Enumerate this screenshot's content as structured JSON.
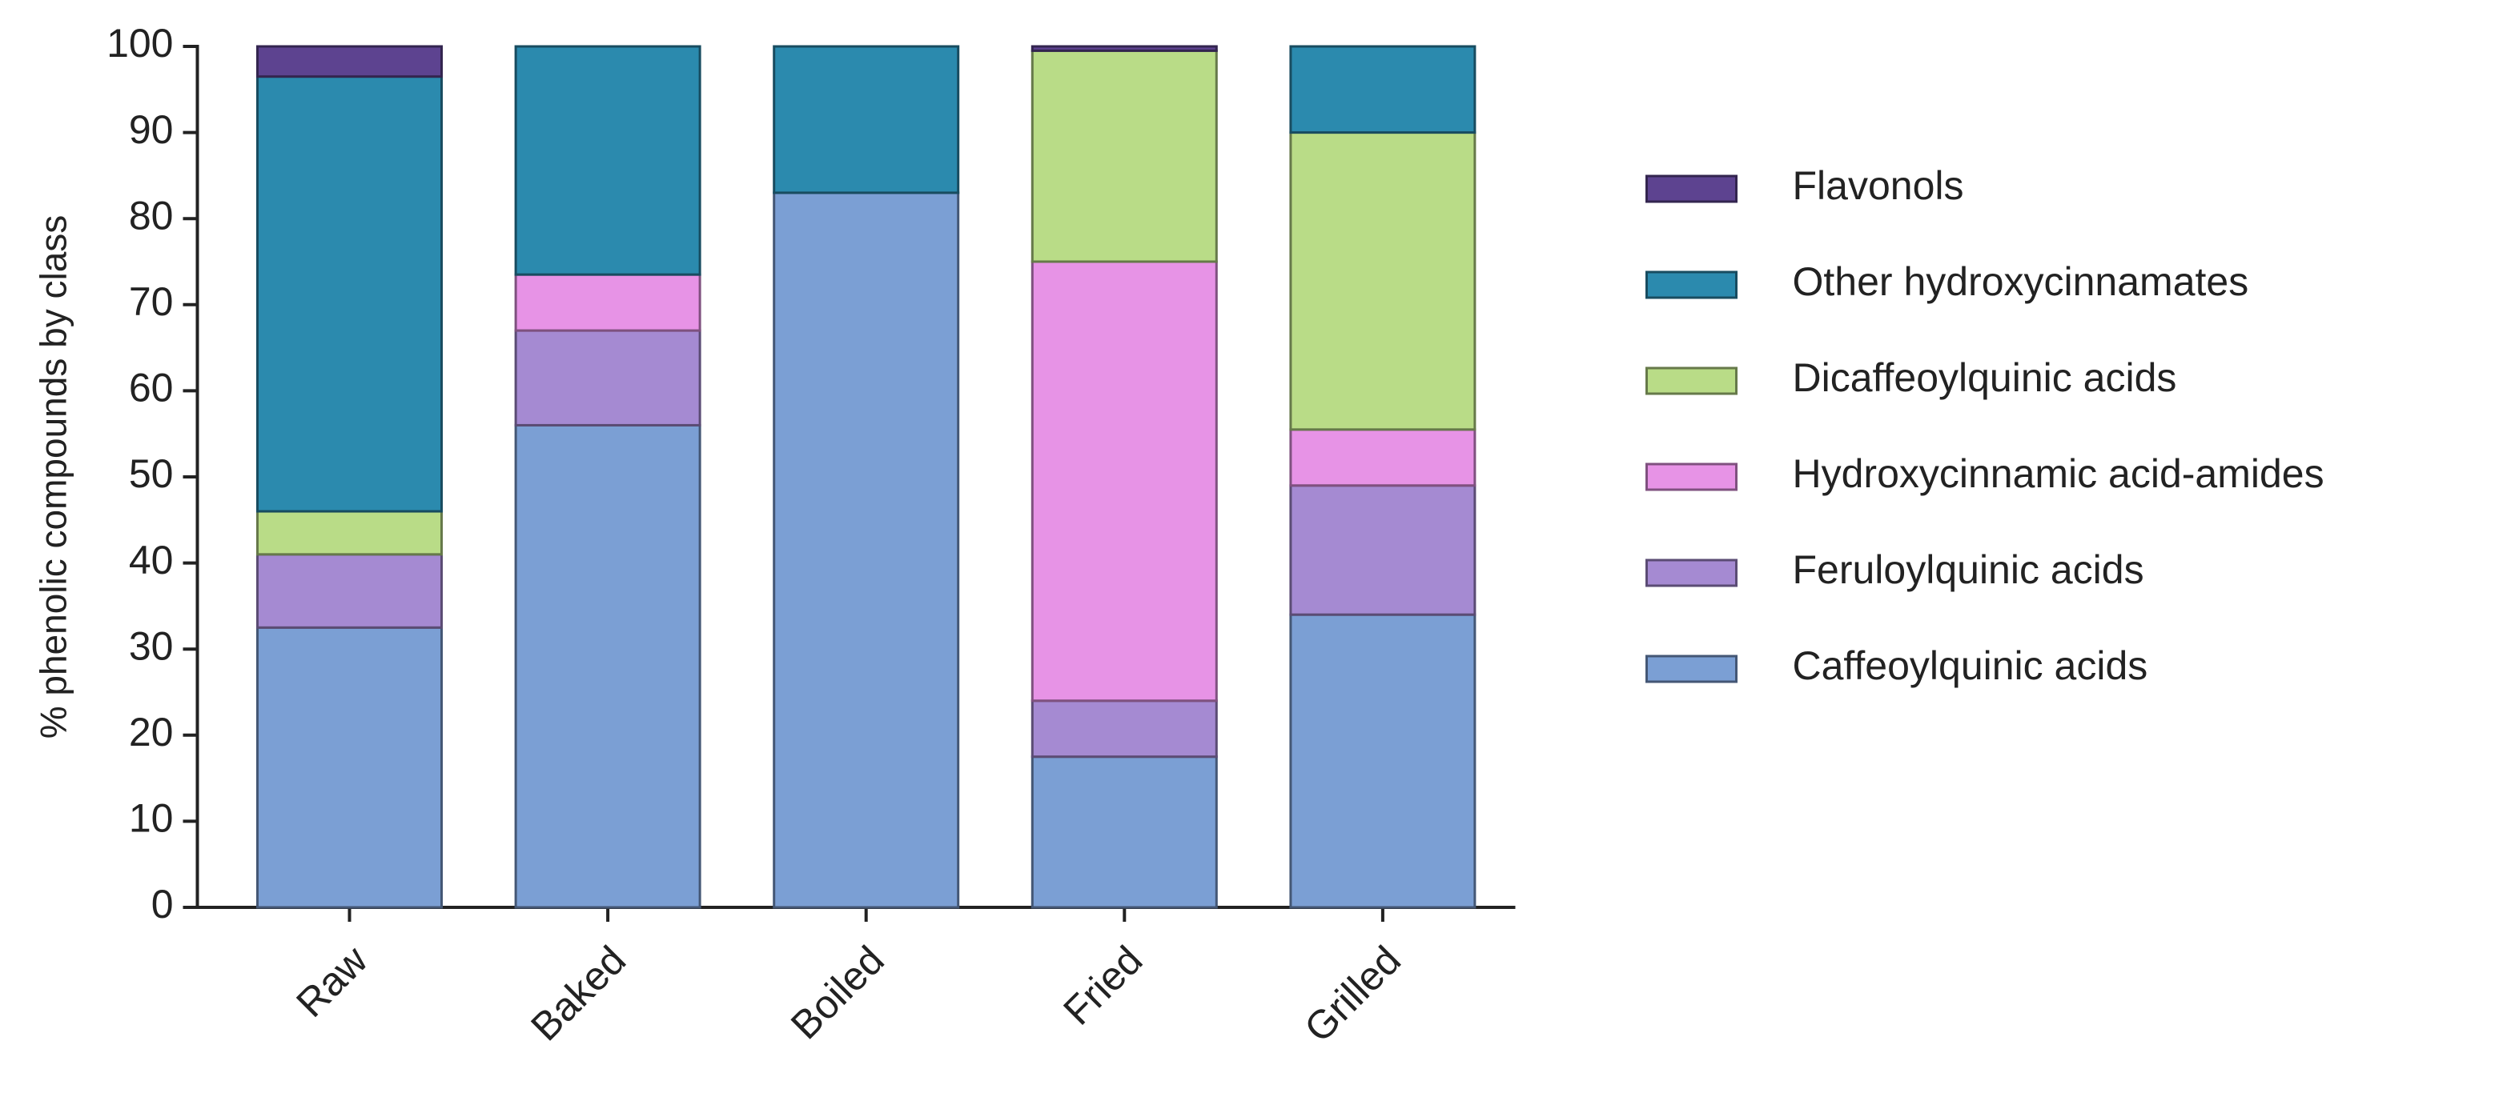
{
  "chart_data": {
    "type": "stacked-bar",
    "y_label": "% phenolic compounds by class",
    "categories": [
      "Raw",
      "Baked",
      "Boiled",
      "Fried",
      "Grilled"
    ],
    "ylim": [
      0,
      100
    ],
    "yticks": [
      0,
      10,
      20,
      30,
      40,
      50,
      60,
      70,
      80,
      90,
      100
    ],
    "legend": "right",
    "series": [
      {
        "name": "Caffeoylquinic acids",
        "color": "#7b9fd4",
        "values": [
          32.5,
          56,
          83,
          17.5,
          34
        ]
      },
      {
        "name": "Feruloylquinic acids",
        "color": "#a58ad2",
        "values": [
          8.5,
          11,
          0,
          6.5,
          15
        ]
      },
      {
        "name": "Hydroxycinnamic acid-amides",
        "color": "#e793e6",
        "values": [
          0,
          6.5,
          0,
          51,
          6.5
        ]
      },
      {
        "name": "Dicaffeoylquinic acids",
        "color": "#b9dc87",
        "values": [
          5,
          0,
          0,
          24.5,
          34.5
        ]
      },
      {
        "name": "Other hydroxycinnamates",
        "color": "#2b8aae",
        "values": [
          50.5,
          26.5,
          17,
          0,
          10
        ]
      },
      {
        "name": "Flavonols",
        "color": "#5d4390",
        "values": [
          3.5,
          0,
          0,
          0.5,
          0
        ]
      }
    ]
  }
}
